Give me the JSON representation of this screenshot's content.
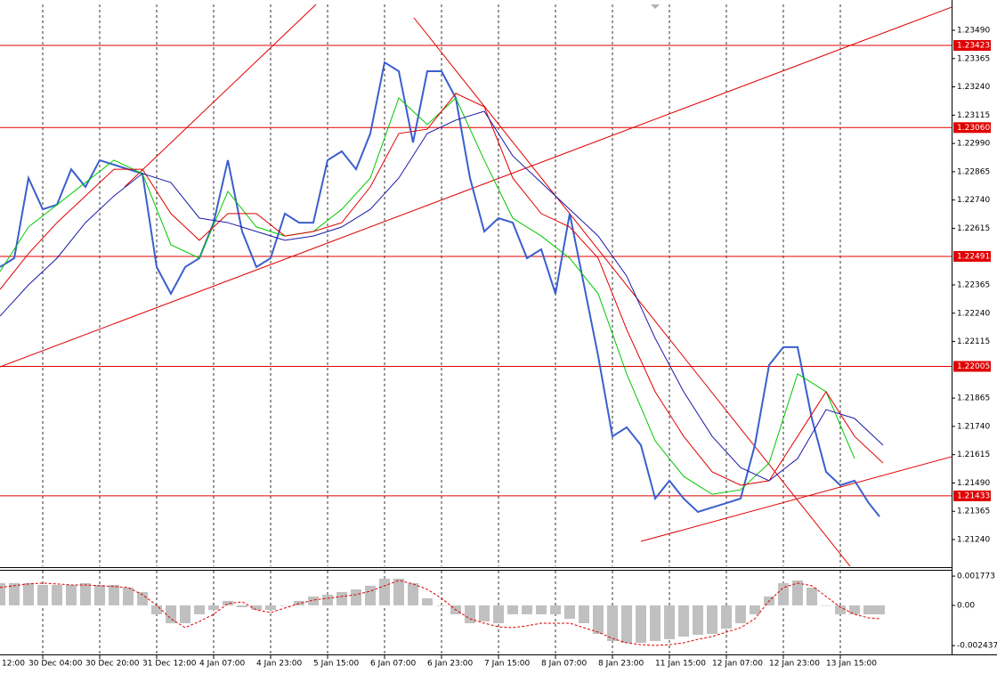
{
  "chart_data": [
    {
      "type": "line",
      "x": [
        0,
        4,
        8,
        12,
        16,
        20,
        24,
        28,
        32,
        36,
        40,
        44,
        48,
        52,
        56,
        60,
        64,
        68,
        72,
        76,
        80,
        84,
        88,
        92,
        96,
        100,
        104,
        108,
        112,
        116,
        120,
        124,
        128,
        132,
        136,
        140,
        144,
        148,
        152,
        156,
        160,
        164,
        168,
        172,
        176,
        180,
        184,
        188,
        192,
        196,
        200,
        204,
        208,
        212,
        216,
        220,
        224,
        228,
        232,
        236,
        240,
        244,
        247
      ],
      "series": [
        {
          "color": "#3a5fcd",
          "values": [
            1.22444,
            1.22483,
            1.22837,
            1.22699,
            1.22719,
            1.22876,
            1.22798,
            1.22916,
            1.22896,
            1.22876,
            1.22857,
            1.22444,
            1.22326,
            1.22444,
            1.22483,
            1.2264,
            1.22916,
            1.22601,
            1.22444,
            1.22483,
            1.2268,
            1.2264,
            1.2264,
            1.22916,
            1.22955,
            1.22876,
            1.23034,
            1.23348,
            1.23309,
            1.22994,
            1.23309,
            1.23309,
            1.23191,
            1.22837,
            1.22601,
            1.2266,
            1.2264,
            1.22483,
            1.22522,
            1.22326,
            1.2268,
            1.22365,
            1.2205,
            1.21696,
            1.21736,
            1.21657,
            1.21421,
            1.215,
            1.21421,
            1.21362,
            1.21382,
            1.21401,
            1.21421,
            1.21657,
            1.22011,
            1.2209,
            1.2209,
            1.21775,
            1.21539,
            1.2148,
            1.215,
            1.21401,
            1.21342
          ]
        },
        {
          "color": "#00c800",
          "x": [
            0,
            8,
            16,
            24,
            32,
            40,
            48,
            56,
            64,
            72,
            80,
            88,
            96,
            104,
            112,
            120,
            128,
            136,
            144,
            152,
            160,
            168,
            176,
            184,
            192,
            200,
            208,
            216,
            224,
            232,
            240,
            248,
            256
          ],
          "values": [
            1.22424,
            1.22621,
            1.22719,
            1.22817,
            1.22916,
            1.22857,
            1.22542,
            1.22483,
            1.22778,
            1.22621,
            1.22581,
            1.22601,
            1.22699,
            1.22837,
            1.23191,
            1.23073,
            1.23191,
            1.22916,
            1.2266,
            1.22581,
            1.22483,
            1.22326,
            1.21972,
            1.21676,
            1.21519,
            1.2144,
            1.2146,
            1.21578,
            1.21972,
            1.21893,
            1.21598,
            null,
            null
          ]
        },
        {
          "color": "#e00000",
          "x": [
            0,
            8,
            16,
            24,
            32,
            40,
            48,
            56,
            64,
            72,
            80,
            88,
            96,
            104,
            112,
            120,
            128,
            136,
            144,
            152,
            160,
            168,
            176,
            184,
            192,
            200,
            208,
            216,
            224,
            232,
            240,
            248,
            256
          ],
          "values": [
            1.22345,
            1.22503,
            1.2264,
            1.22758,
            1.22876,
            1.22876,
            1.2268,
            1.22562,
            1.2268,
            1.2268,
            1.22581,
            1.22601,
            1.2264,
            1.22798,
            1.23034,
            1.23053,
            1.23211,
            1.23152,
            1.22837,
            1.2268,
            1.22621,
            1.22483,
            1.22168,
            1.21893,
            1.21696,
            1.21539,
            1.2148,
            1.215,
            1.21696,
            1.21893,
            1.21696,
            1.21578,
            null
          ]
        },
        {
          "color": "#1a1aa8",
          "x": [
            0,
            8,
            16,
            24,
            32,
            40,
            48,
            56,
            64,
            72,
            80,
            88,
            96,
            104,
            112,
            120,
            128,
            136,
            144,
            152,
            160,
            168,
            176,
            184,
            192,
            200,
            208,
            216,
            224,
            232,
            240,
            248,
            256
          ],
          "values": [
            1.22227,
            1.22365,
            1.22483,
            1.2264,
            1.22758,
            1.22857,
            1.22817,
            1.2266,
            1.2264,
            1.22601,
            1.22562,
            1.22581,
            1.22621,
            1.22699,
            1.22837,
            1.23034,
            1.23093,
            1.23132,
            1.22935,
            1.22817,
            1.22699,
            1.22581,
            1.22404,
            1.22129,
            1.21893,
            1.21696,
            1.21558,
            1.215,
            1.21598,
            1.21814,
            1.21775,
            1.21657,
            null
          ]
        }
      ],
      "xlim": [
        0,
        267.5
      ],
      "xticks": [
        {
          "value": -4,
          "label": "12:00"
        },
        {
          "value": 12,
          "label": "30 Dec 04:00"
        },
        {
          "value": 28,
          "label": "30 Dec 20:00"
        },
        {
          "value": 44,
          "label": "31 Dec 12:00"
        },
        {
          "value": 60,
          "label": "4 Jan 07:00"
        },
        {
          "value": 76,
          "label": "4 Jan 23:00"
        },
        {
          "value": 92,
          "label": "5 Jan 15:00"
        },
        {
          "value": 108,
          "label": "6 Jan 07:00"
        },
        {
          "value": 124,
          "label": "6 Jan 23:00"
        },
        {
          "value": 140,
          "label": "7 Jan 15:00"
        },
        {
          "value": 156,
          "label": "8 Jan 07:00"
        },
        {
          "value": 172,
          "label": "8 Jan 23:00"
        },
        {
          "value": 188,
          "label": "11 Jan 15:00"
        },
        {
          "value": 204,
          "label": "12 Jan 07:00"
        },
        {
          "value": 220,
          "label": "12 Jan 23:00"
        },
        {
          "value": 236,
          "label": "13 Jan 15:00"
        }
      ],
      "ylim": [
        1.21122,
        1.23604
      ],
      "yticks": [
        {
          "value": 1.2349,
          "label": "1.23490"
        },
        1.23365,
        {
          "value": 1.2324,
          "label": "1.23240"
        },
        1.23115,
        {
          "value": 1.2299,
          "label": "1.22990"
        },
        1.22865,
        {
          "value": 1.2274,
          "label": "1.22740"
        },
        1.22615,
        1.22365,
        {
          "value": 1.2224,
          "label": "1.22240"
        },
        1.22115,
        1.21865,
        {
          "value": 1.2174,
          "label": "1.21740"
        },
        1.21615,
        {
          "value": 1.2149,
          "label": "1.21490"
        },
        1.21365,
        {
          "value": 1.2124,
          "label": "1.21240"
        }
      ],
      "grid": true,
      "level_color": "#e00000",
      "levels": [
        1.23423,
        {
          "value": 1.2306,
          "label": "1.23060"
        },
        1.22491,
        1.22005,
        1.21433
      ],
      "trend_lines": [
        {
          "x": [
            0,
            267.25
          ],
          "y": [
            1.22003,
            1.23592
          ]
        },
        {
          "x": [
            35,
            88.75
          ],
          "y": [
            1.22798,
            1.23604
          ]
        },
        {
          "x": [
            116.25,
            238.75
          ],
          "y": [
            1.23545,
            1.21122
          ]
        },
        {
          "x": [
            180,
            267.25
          ],
          "y": [
            1.21232,
            1.21606
          ]
        }
      ]
    },
    {
      "type": "bar",
      "x": [
        0,
        4,
        8,
        12,
        16,
        20,
        24,
        28,
        32,
        36,
        40,
        44,
        48,
        52,
        56,
        60,
        64,
        68,
        72,
        76,
        80,
        84,
        88,
        92,
        96,
        100,
        104,
        108,
        112,
        116,
        120,
        124,
        128,
        132,
        136,
        140,
        144,
        148,
        152,
        156,
        160,
        164,
        168,
        172,
        176,
        180,
        184,
        188,
        192,
        196,
        200,
        204,
        208,
        212,
        216,
        220,
        224,
        228,
        232,
        236,
        240,
        244,
        247
      ],
      "color": "#c0c0c0",
      "values": [
        0.00135,
        0.00135,
        0.00135,
        0.00124,
        0.00124,
        0.00124,
        0.00135,
        0.00124,
        0.00124,
        0.00108,
        0.00081,
        -0.00054,
        -0.00108,
        -0.00108,
        -0.00054,
        -0.00027,
        0.00027,
        -0.00011,
        -0.00027,
        -0.00027,
        0,
        0.00027,
        0.00054,
        0.00065,
        0.00081,
        0.00097,
        0.00119,
        0.00162,
        0.00162,
        0.00135,
        0.00043,
        0,
        -0.00054,
        -0.00108,
        -0.00097,
        -0.00108,
        -0.00054,
        -0.00054,
        -0.00054,
        -0.00054,
        -0.00081,
        -0.00108,
        -0.00173,
        -0.00216,
        -0.00227,
        -0.00227,
        -0.00216,
        -0.00205,
        -0.00189,
        -0.00178,
        -0.00173,
        -0.00141,
        -0.00108,
        -0.00054,
        0.00054,
        0.00135,
        0.00151,
        0.00108,
        0,
        -0.00054,
        -0.00054,
        -0.00054,
        -0.00054
      ],
      "signal": {
        "color": "#e00000",
        "values": [
          0.00108,
          0.00119,
          0.0013,
          0.00135,
          0.0013,
          0.00124,
          0.00124,
          0.00119,
          0.00114,
          0.00108,
          0.00065,
          0,
          -0.00081,
          -0.00135,
          -0.00097,
          -0.00054,
          0.00011,
          0.00022,
          -0.00027,
          -0.00043,
          -0.00016,
          0.00011,
          0.00032,
          0.00043,
          0.00054,
          0.00065,
          0.00086,
          0.00119,
          0.00151,
          0.0013,
          0.00097,
          0.00043,
          -0.00027,
          -0.00081,
          -0.00108,
          -0.0013,
          -0.00135,
          -0.00124,
          -0.00108,
          -0.00108,
          -0.00108,
          -0.00135,
          -0.00162,
          -0.002,
          -0.00227,
          -0.00238,
          -0.00243,
          -0.00238,
          -0.00227,
          -0.00205,
          -0.00189,
          -0.00162,
          -0.00135,
          -0.00081,
          0.00027,
          0.00108,
          0.00135,
          0.00119,
          0.00054,
          -0.00011,
          -0.00054,
          -0.00076,
          -0.00081
        ]
      },
      "ylim": [
        -0.00297,
        0.0021
      ],
      "yticks": [
        0.001773,
        {
          "value": 0,
          "label": "0.00"
        },
        -0.002437
      ]
    }
  ]
}
